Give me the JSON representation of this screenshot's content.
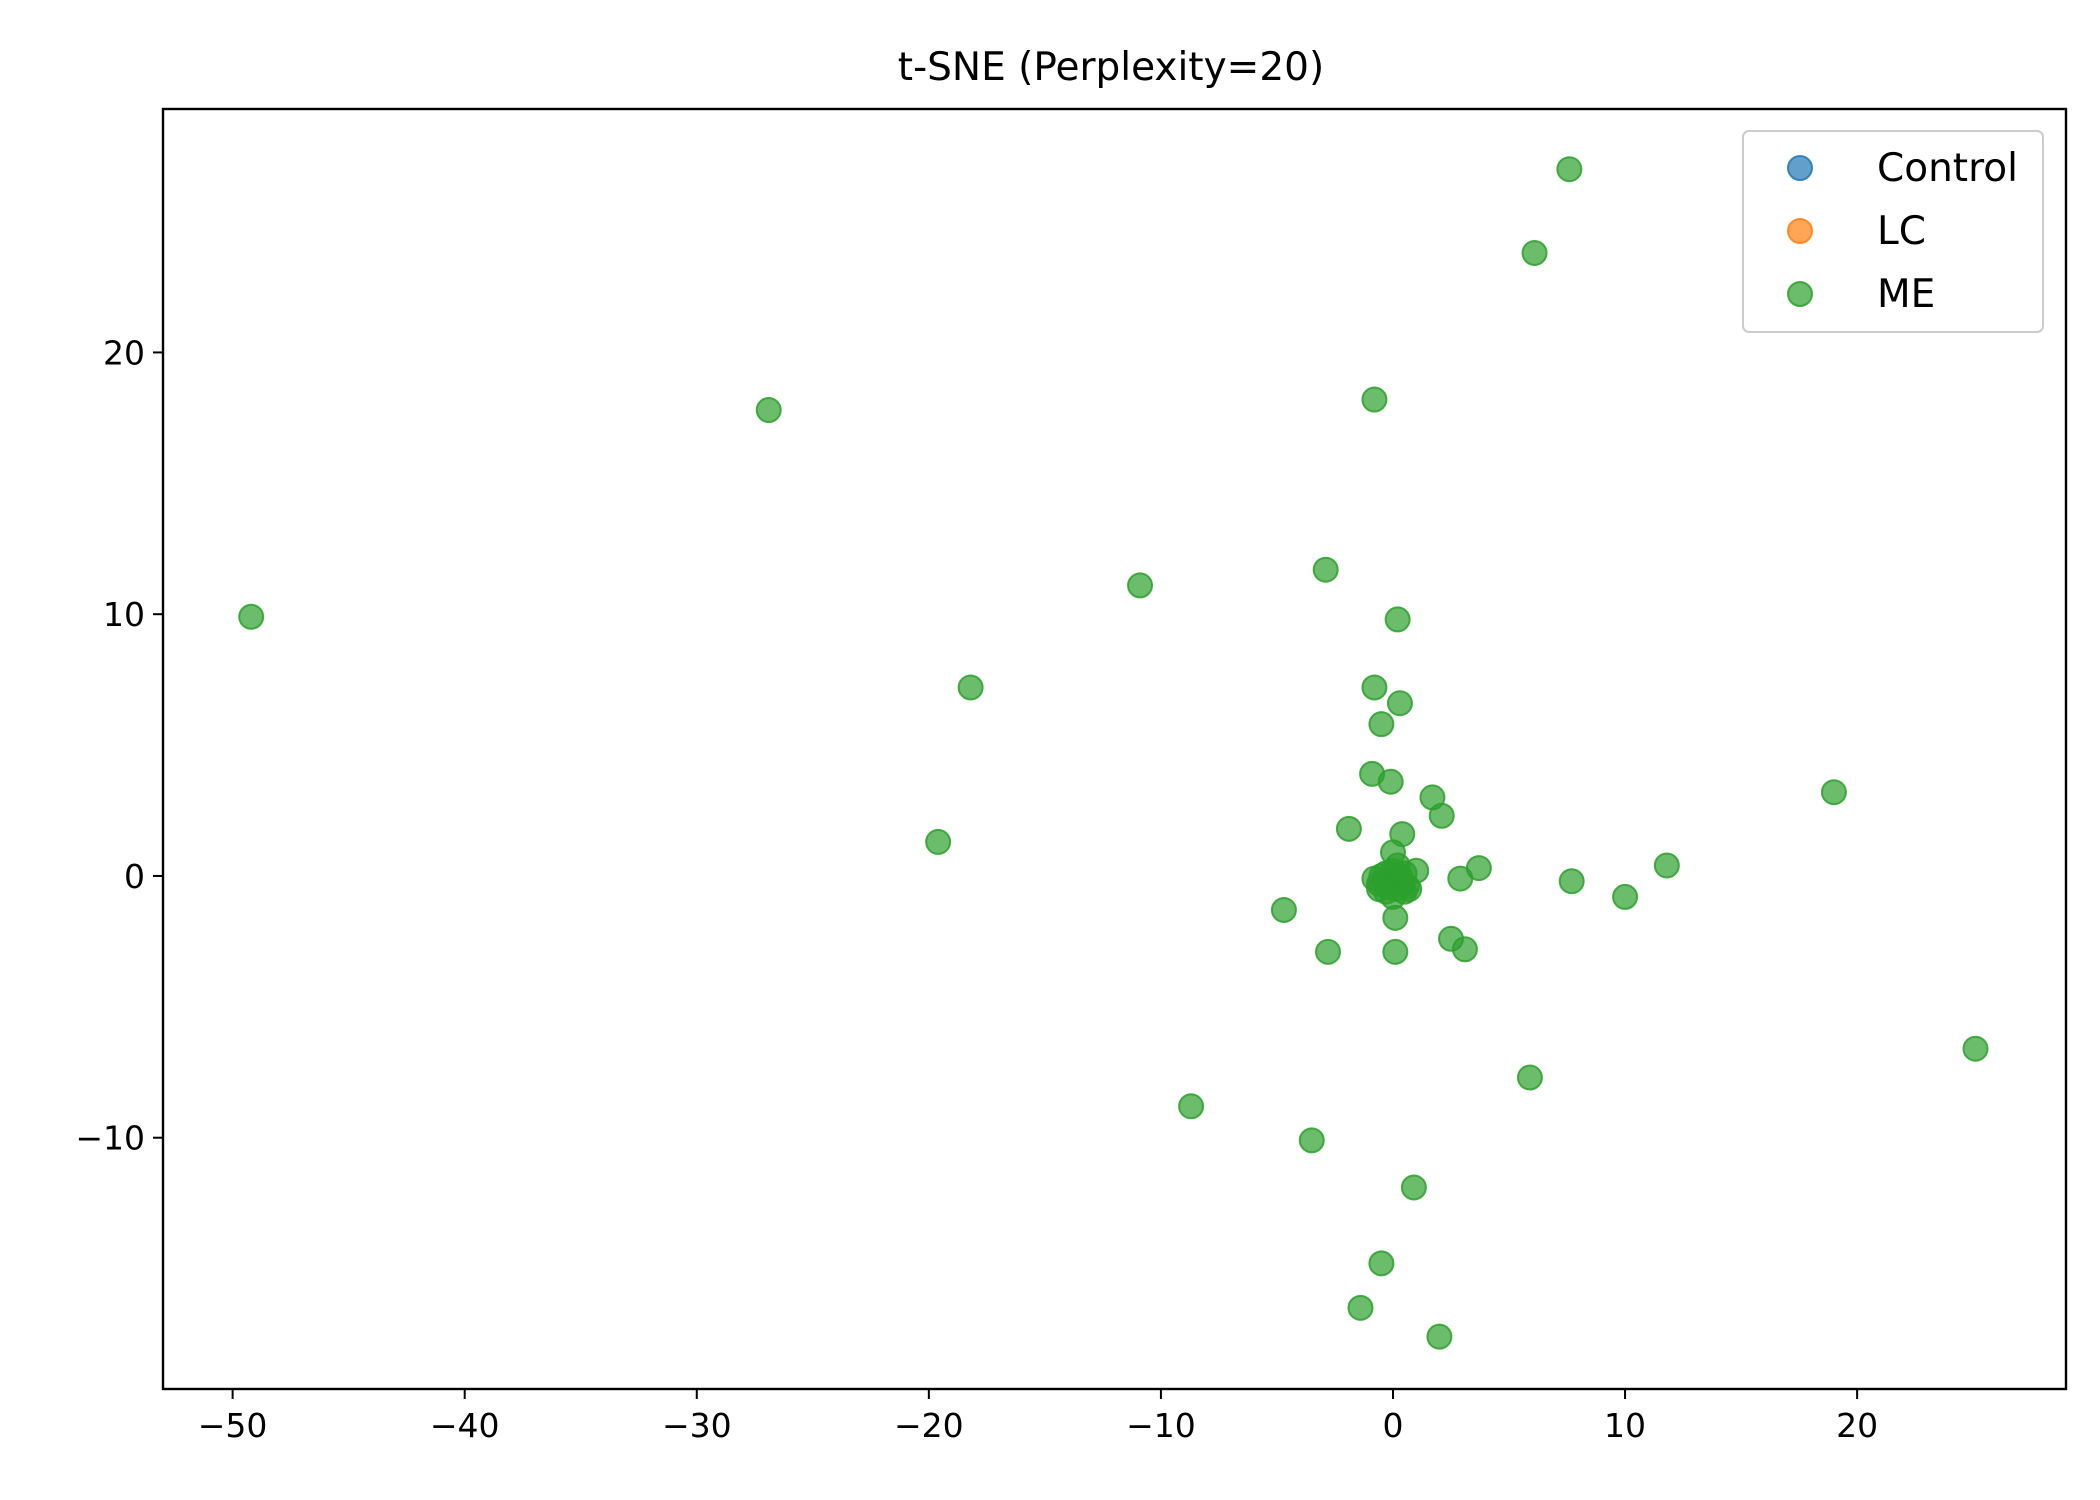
{
  "chart_data": {
    "type": "scatter",
    "title": "t-SNE (Perplexity=20)",
    "xlabel": "",
    "ylabel": "",
    "xlim": [
      -53,
      29
    ],
    "ylim": [
      -19.6,
      29.3
    ],
    "x_ticks": [
      -50,
      -40,
      -30,
      -20,
      -10,
      0,
      10,
      20
    ],
    "y_ticks": [
      -10,
      0,
      10,
      20
    ],
    "x_tick_labels": [
      "−50",
      "−40",
      "−30",
      "−20",
      "−10",
      "0",
      "10",
      "20"
    ],
    "y_tick_labels": [
      "−10",
      "0",
      "10",
      "20"
    ],
    "grid": false,
    "legend_position": "top-right",
    "series": [
      {
        "name": "Control",
        "color": "#1f77b4",
        "points": []
      },
      {
        "name": "LC",
        "color": "#ff7f0e",
        "points": []
      },
      {
        "name": "ME",
        "color": "#2ca02c",
        "points": [
          [
            -49.2,
            9.9
          ],
          [
            -26.9,
            17.8
          ],
          [
            -18.2,
            7.2
          ],
          [
            -19.6,
            1.3
          ],
          [
            -10.9,
            11.1
          ],
          [
            -8.7,
            -8.8
          ],
          [
            -4.7,
            -1.3
          ],
          [
            -3.5,
            -10.1
          ],
          [
            -2.9,
            11.7
          ],
          [
            -2.8,
            -2.9
          ],
          [
            -1.9,
            1.8
          ],
          [
            -1.4,
            -16.5
          ],
          [
            -0.9,
            3.9
          ],
          [
            -0.8,
            7.2
          ],
          [
            -0.8,
            18.2
          ],
          [
            -0.5,
            5.8
          ],
          [
            -0.5,
            -14.8
          ],
          [
            -0.1,
            3.6
          ],
          [
            0.0,
            0.9
          ],
          [
            0.1,
            -1.6
          ],
          [
            0.1,
            -2.9
          ],
          [
            0.2,
            9.8
          ],
          [
            0.3,
            6.6
          ],
          [
            0.4,
            1.6
          ],
          [
            0.9,
            -11.9
          ],
          [
            1.0,
            0.2
          ],
          [
            1.7,
            3.0
          ],
          [
            2.0,
            -17.6
          ],
          [
            2.1,
            2.3
          ],
          [
            2.5,
            -2.4
          ],
          [
            2.9,
            -0.1
          ],
          [
            3.1,
            -2.8
          ],
          [
            3.7,
            0.3
          ],
          [
            5.9,
            -7.7
          ],
          [
            6.1,
            23.8
          ],
          [
            7.6,
            27.0
          ],
          [
            7.7,
            -0.2
          ],
          [
            10.0,
            -0.8
          ],
          [
            11.8,
            0.4
          ],
          [
            19.0,
            3.2
          ],
          [
            25.1,
            -6.6
          ],
          [
            -0.8,
            -0.1
          ],
          [
            -0.6,
            -0.3
          ],
          [
            -0.5,
            0.0
          ],
          [
            -0.4,
            -0.2
          ],
          [
            -0.3,
            0.1
          ],
          [
            -0.2,
            -0.4
          ],
          [
            -0.1,
            -0.1
          ],
          [
            0.0,
            0.2
          ],
          [
            0.1,
            -0.5
          ],
          [
            0.2,
            -0.2
          ],
          [
            0.3,
            0.0
          ],
          [
            0.4,
            -0.3
          ],
          [
            0.5,
            -0.6
          ],
          [
            0.6,
            -0.4
          ],
          [
            0.7,
            -0.5
          ],
          [
            -0.3,
            -0.6
          ],
          [
            0.0,
            -0.8
          ],
          [
            0.2,
            0.4
          ],
          [
            0.5,
            0.1
          ],
          [
            -0.6,
            -0.5
          ]
        ]
      }
    ]
  }
}
